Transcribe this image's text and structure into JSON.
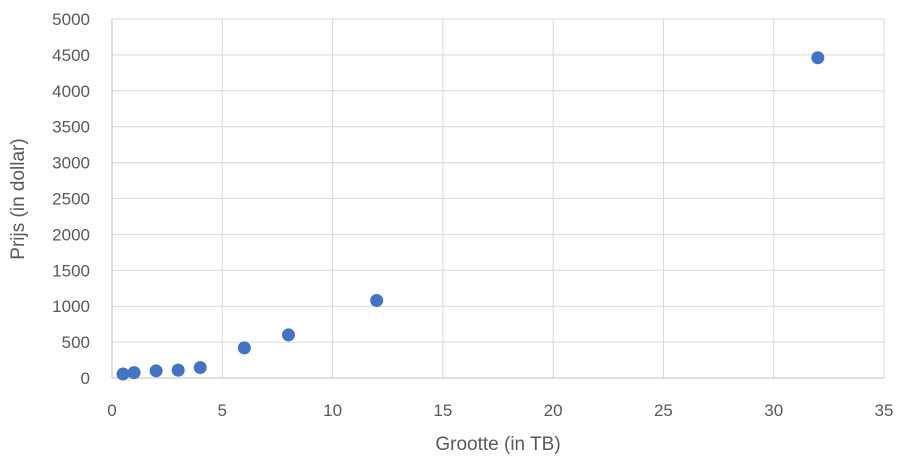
{
  "chart_data": {
    "type": "scatter",
    "title": "",
    "xlabel": "Grootte (in TB)",
    "ylabel": "Prijs (in dollar)",
    "xlim": [
      0,
      35
    ],
    "ylim": [
      0,
      5000
    ],
    "xticks": [
      "0",
      "5",
      "10",
      "15",
      "20",
      "25",
      "30",
      "35"
    ],
    "yticks": [
      "0",
      "500",
      "1000",
      "1500",
      "2000",
      "2500",
      "3000",
      "3500",
      "4000",
      "4500",
      "5000"
    ],
    "grid": true,
    "legend": "none",
    "marker_color": "#4472C4",
    "points": [
      {
        "x": 0.5,
        "y": 55
      },
      {
        "x": 1,
        "y": 75
      },
      {
        "x": 2,
        "y": 100
      },
      {
        "x": 3,
        "y": 110
      },
      {
        "x": 4,
        "y": 145
      },
      {
        "x": 6,
        "y": 420
      },
      {
        "x": 8,
        "y": 600
      },
      {
        "x": 12,
        "y": 1080
      },
      {
        "x": 32,
        "y": 4460
      }
    ]
  }
}
